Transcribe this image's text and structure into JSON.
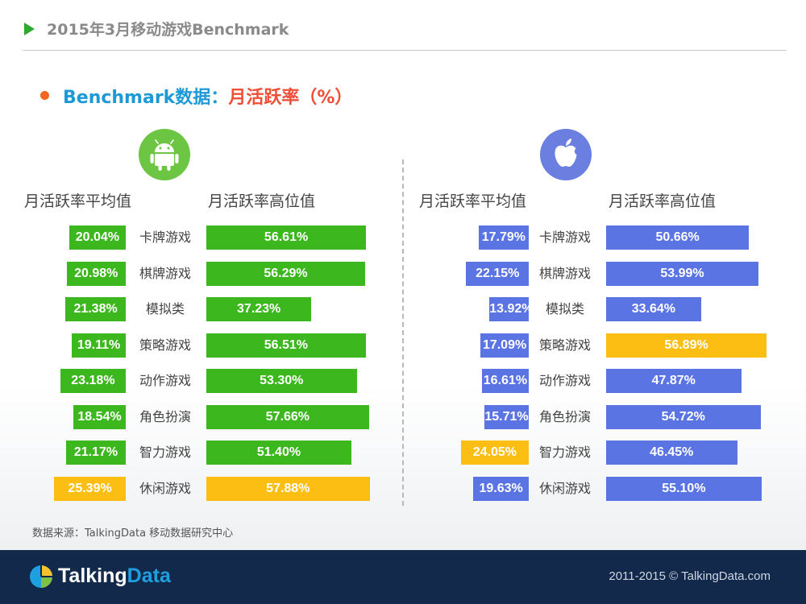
{
  "header": {
    "title": "2015年3月移动游戏Benchmark"
  },
  "section": {
    "title_prefix": "Benchmark数据：",
    "title_main": "月活跃率（%）"
  },
  "colors": {
    "android_bar": "#3cb81e",
    "ios_bar": "#5b74e3",
    "highlight_bar": "#fcbe12",
    "android_icon": "#6cc644",
    "ios_icon": "#6a7fe0",
    "footer_bg": "#13294b"
  },
  "icons": {
    "android": "android-robot-icon",
    "apple": "apple-logo-icon",
    "footer": "talkingdata-pie-icon"
  },
  "chart_data": [
    {
      "type": "bar",
      "platform": "android",
      "categories": [
        "卡牌游戏",
        "棋牌游戏",
        "模拟类",
        "策略游戏",
        "动作游戏",
        "角色扮演",
        "智力游戏",
        "休闲游戏"
      ],
      "series": [
        {
          "name": "月活跃率平均值",
          "values": [
            20.04,
            20.98,
            21.38,
            19.11,
            23.18,
            18.54,
            21.17,
            25.39
          ],
          "labels": [
            "20.04%",
            "20.98%",
            "21.38%",
            "19.11%",
            "23.18%",
            "18.54%",
            "21.17%",
            "25.39%"
          ],
          "highlight_index": 7
        },
        {
          "name": "月活跃率高位值",
          "values": [
            56.61,
            56.29,
            37.23,
            56.51,
            53.3,
            57.66,
            51.4,
            57.88
          ],
          "labels": [
            "56.61%",
            "56.29%",
            "37.23%",
            "56.51%",
            "53.30%",
            "57.66%",
            "51.40%",
            "57.88%"
          ],
          "highlight_index": 7
        }
      ]
    },
    {
      "type": "bar",
      "platform": "ios",
      "categories": [
        "卡牌游戏",
        "棋牌游戏",
        "模拟类",
        "策略游戏",
        "动作游戏",
        "角色扮演",
        "智力游戏",
        "休闲游戏"
      ],
      "series": [
        {
          "name": "月活跃率平均值",
          "values": [
            17.79,
            22.15,
            13.92,
            17.09,
            16.61,
            15.71,
            24.05,
            19.63
          ],
          "labels": [
            "17.79%",
            "22.15%",
            "13.92%",
            "17.09%",
            "16.61%",
            "15.71%",
            "24.05%",
            "19.63%"
          ],
          "highlight_index": 6
        },
        {
          "name": "月活跃率高位值",
          "values": [
            50.66,
            53.99,
            33.64,
            56.89,
            47.87,
            54.72,
            46.45,
            55.1
          ],
          "labels": [
            "50.66%",
            "53.99%",
            "33.64%",
            "56.89%",
            "47.87%",
            "54.72%",
            "46.45%",
            "55.10%"
          ],
          "highlight_index": 3
        }
      ]
    }
  ],
  "source": {
    "text": "数据来源：TalkingData 移动数据研究中心"
  },
  "footer": {
    "logo_part1": "Talking",
    "logo_part2": "Data",
    "copyright": "2011-2015 © TalkingData.com"
  }
}
